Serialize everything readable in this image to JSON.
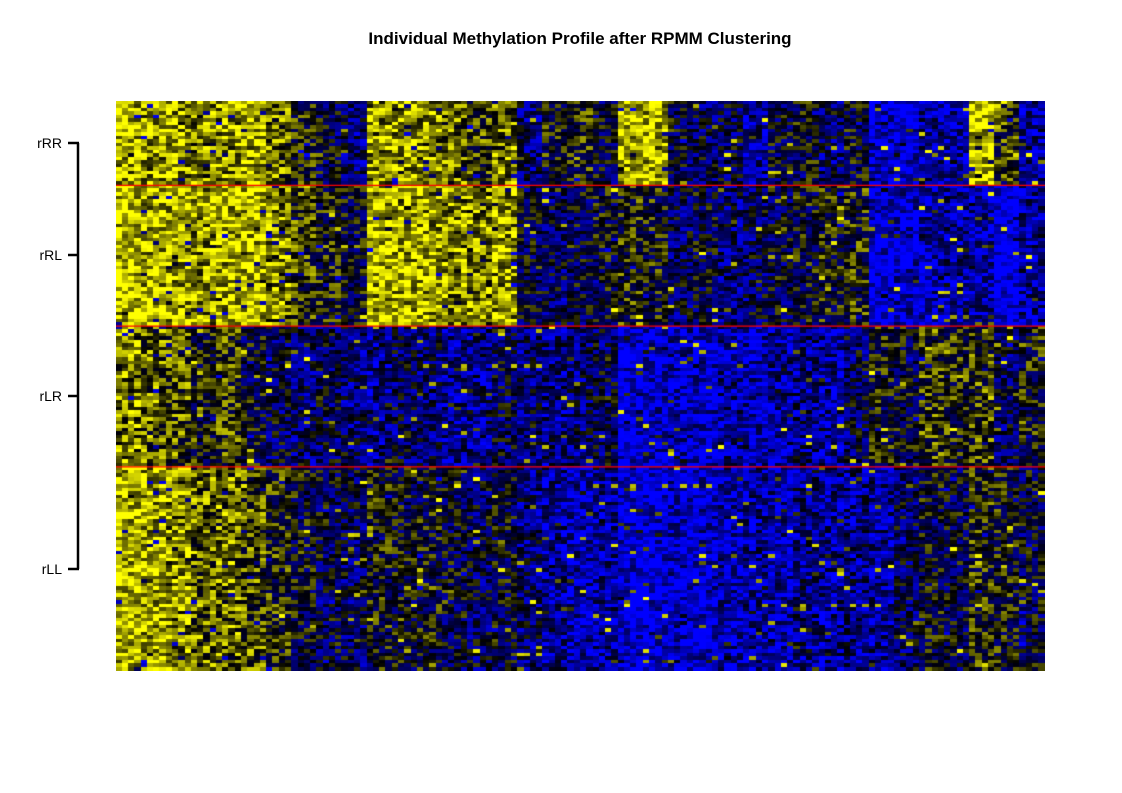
{
  "chart_data": {
    "type": "heatmap",
    "title": "Individual Methylation Profile after RPMM Clustering",
    "xlabel": "",
    "ylabel": "",
    "color_scale": {
      "low": "#0000ff",
      "mid": "#000000",
      "high": "#ffff00"
    },
    "separator_color": "#ff0000",
    "cluster_order": [
      "rRR",
      "rRL",
      "rLR",
      "rLL"
    ],
    "clusters": [
      {
        "name": "rRR",
        "n_samples": 24,
        "pattern": [
          0.85,
          0.8,
          0.8,
          0.75,
          0.8,
          0.85,
          0.7,
          0.55,
          0.4,
          0.3,
          0.8,
          0.82,
          0.78,
          0.7,
          0.6,
          0.75,
          0.3,
          0.5,
          0.55,
          0.4,
          0.9,
          0.85,
          0.4,
          0.35,
          0.35,
          0.2,
          0.4,
          0.45,
          0.3,
          0.45,
          0.1,
          0.05,
          0.2,
          0.15,
          0.9,
          0.6,
          0.2
        ]
      },
      {
        "name": "rRL",
        "n_samples": 40,
        "pattern": [
          0.9,
          0.85,
          0.85,
          0.8,
          0.85,
          0.88,
          0.75,
          0.6,
          0.5,
          0.45,
          0.85,
          0.85,
          0.82,
          0.78,
          0.75,
          0.82,
          0.4,
          0.35,
          0.4,
          0.45,
          0.55,
          0.5,
          0.35,
          0.4,
          0.3,
          0.35,
          0.4,
          0.45,
          0.5,
          0.55,
          0.05,
          0.1,
          0.15,
          0.2,
          0.15,
          0.0,
          0.2
        ]
      },
      {
        "name": "rLR",
        "n_samples": 40,
        "pattern": [
          0.75,
          0.7,
          0.65,
          0.5,
          0.6,
          0.45,
          0.35,
          0.3,
          0.35,
          0.3,
          0.25,
          0.35,
          0.3,
          0.2,
          0.25,
          0.35,
          0.3,
          0.25,
          0.3,
          0.35,
          0.05,
          0.1,
          0.15,
          0.1,
          0.2,
          0.15,
          0.2,
          0.25,
          0.2,
          0.35,
          0.5,
          0.45,
          0.6,
          0.55,
          0.6,
          0.35,
          0.5
        ]
      },
      {
        "name": "rLL",
        "n_samples": 58,
        "pattern": [
          0.88,
          0.85,
          0.78,
          0.7,
          0.72,
          0.65,
          0.55,
          0.45,
          0.4,
          0.35,
          0.5,
          0.45,
          0.48,
          0.4,
          0.35,
          0.42,
          0.3,
          0.2,
          0.15,
          0.2,
          0.05,
          0.05,
          0.1,
          0.1,
          0.15,
          0.2,
          0.15,
          0.25,
          0.2,
          0.25,
          0.2,
          0.35,
          0.45,
          0.4,
          0.55,
          0.5,
          0.4
        ]
      }
    ]
  }
}
